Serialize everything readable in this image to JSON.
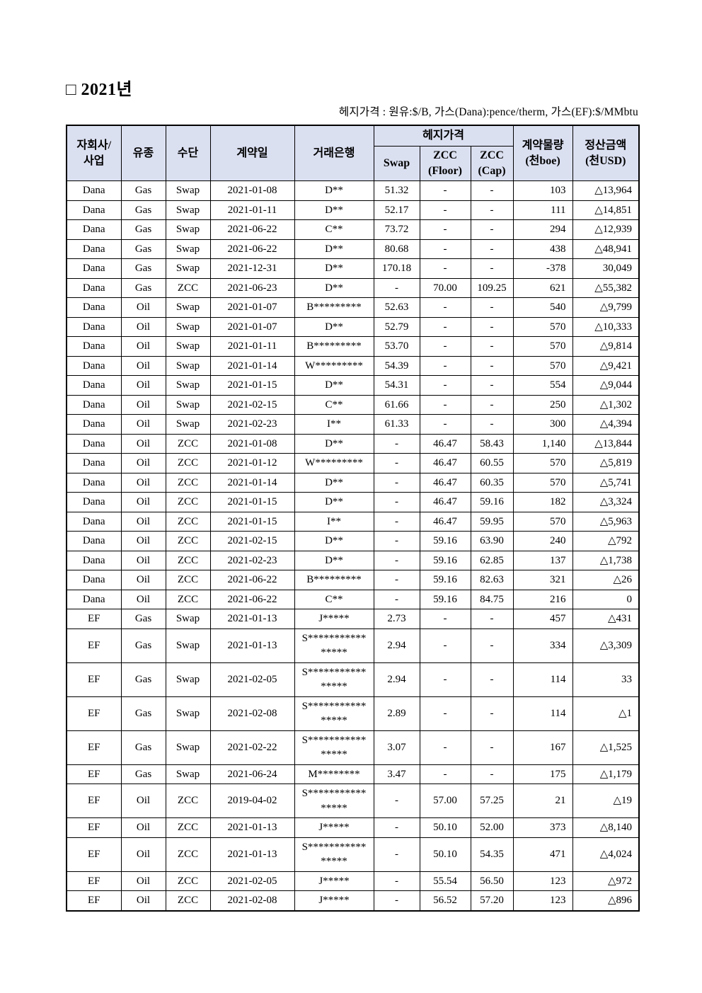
{
  "page": {
    "title": "□ 2021년",
    "subtitle": "헤지가격 : 원유:$/B, 가스(Dana):pence/therm, 가스(EF):$/MMbtu"
  },
  "colors": {
    "header_bg": "#dbe0f1",
    "border": "#000000"
  },
  "table": {
    "headers": {
      "company": "자회사/\n사업",
      "fuel": "유종",
      "method": "수단",
      "date": "계약일",
      "bank": "거래은행",
      "hedge_group": "헤지가격",
      "swap": "Swap",
      "zcc_floor": "ZCC\n(Floor)",
      "zcc_cap": "ZCC\n(Cap)",
      "volume": "계약물량\n(천boe)",
      "settlement": "정산금액\n(천USD)"
    },
    "rows": [
      [
        "Dana",
        "Gas",
        "Swap",
        "2021-01-08",
        "D**",
        "51.32",
        "-",
        "-",
        "103",
        "△13,964"
      ],
      [
        "Dana",
        "Gas",
        "Swap",
        "2021-01-11",
        "D**",
        "52.17",
        "-",
        "-",
        "111",
        "△14,851"
      ],
      [
        "Dana",
        "Gas",
        "Swap",
        "2021-06-22",
        "C**",
        "73.72",
        "-",
        "-",
        "294",
        "△12,939"
      ],
      [
        "Dana",
        "Gas",
        "Swap",
        "2021-06-22",
        "D**",
        "80.68",
        "-",
        "-",
        "438",
        "△48,941"
      ],
      [
        "Dana",
        "Gas",
        "Swap",
        "2021-12-31",
        "D**",
        "170.18",
        "-",
        "-",
        "-378",
        "30,049"
      ],
      [
        "Dana",
        "Gas",
        "ZCC",
        "2021-06-23",
        "D**",
        "-",
        "70.00",
        "109.25",
        "621",
        "△55,382"
      ],
      [
        "Dana",
        "Oil",
        "Swap",
        "2021-01-07",
        "B*********",
        "52.63",
        "-",
        "-",
        "540",
        "△9,799"
      ],
      [
        "Dana",
        "Oil",
        "Swap",
        "2021-01-07",
        "D**",
        "52.79",
        "-",
        "-",
        "570",
        "△10,333"
      ],
      [
        "Dana",
        "Oil",
        "Swap",
        "2021-01-11",
        "B*********",
        "53.70",
        "-",
        "-",
        "570",
        "△9,814"
      ],
      [
        "Dana",
        "Oil",
        "Swap",
        "2021-01-14",
        "W*********",
        "54.39",
        "-",
        "-",
        "570",
        "△9,421"
      ],
      [
        "Dana",
        "Oil",
        "Swap",
        "2021-01-15",
        "D**",
        "54.31",
        "-",
        "-",
        "554",
        "△9,044"
      ],
      [
        "Dana",
        "Oil",
        "Swap",
        "2021-02-15",
        "C**",
        "61.66",
        "-",
        "-",
        "250",
        "△1,302"
      ],
      [
        "Dana",
        "Oil",
        "Swap",
        "2021-02-23",
        "I**",
        "61.33",
        "-",
        "-",
        "300",
        "△4,394"
      ],
      [
        "Dana",
        "Oil",
        "ZCC",
        "2021-01-08",
        "D**",
        "-",
        "46.47",
        "58.43",
        "1,140",
        "△13,844"
      ],
      [
        "Dana",
        "Oil",
        "ZCC",
        "2021-01-12",
        "W*********",
        "-",
        "46.47",
        "60.55",
        "570",
        "△5,819"
      ],
      [
        "Dana",
        "Oil",
        "ZCC",
        "2021-01-14",
        "D**",
        "-",
        "46.47",
        "60.35",
        "570",
        "△5,741"
      ],
      [
        "Dana",
        "Oil",
        "ZCC",
        "2021-01-15",
        "D**",
        "-",
        "46.47",
        "59.16",
        "182",
        "△3,324"
      ],
      [
        "Dana",
        "Oil",
        "ZCC",
        "2021-01-15",
        "I**",
        "-",
        "46.47",
        "59.95",
        "570",
        "△5,963"
      ],
      [
        "Dana",
        "Oil",
        "ZCC",
        "2021-02-15",
        "D**",
        "-",
        "59.16",
        "63.90",
        "240",
        "△792"
      ],
      [
        "Dana",
        "Oil",
        "ZCC",
        "2021-02-23",
        "D**",
        "-",
        "59.16",
        "62.85",
        "137",
        "△1,738"
      ],
      [
        "Dana",
        "Oil",
        "ZCC",
        "2021-06-22",
        "B*********",
        "-",
        "59.16",
        "82.63",
        "321",
        "△26"
      ],
      [
        "Dana",
        "Oil",
        "ZCC",
        "2021-06-22",
        "C**",
        "-",
        "59.16",
        "84.75",
        "216",
        "0"
      ],
      [
        "EF",
        "Gas",
        "Swap",
        "2021-01-13",
        "J*****",
        "2.73",
        "-",
        "-",
        "457",
        "△431"
      ],
      [
        "EF",
        "Gas",
        "Swap",
        "2021-01-13",
        "S***********\n*****",
        "2.94",
        "-",
        "-",
        "334",
        "△3,309"
      ],
      [
        "EF",
        "Gas",
        "Swap",
        "2021-02-05",
        "S***********\n*****",
        "2.94",
        "-",
        "-",
        "114",
        "33"
      ],
      [
        "EF",
        "Gas",
        "Swap",
        "2021-02-08",
        "S***********\n*****",
        "2.89",
        "-",
        "-",
        "114",
        "△1"
      ],
      [
        "EF",
        "Gas",
        "Swap",
        "2021-02-22",
        "S***********\n*****",
        "3.07",
        "-",
        "-",
        "167",
        "△1,525"
      ],
      [
        "EF",
        "Gas",
        "Swap",
        "2021-06-24",
        "M********",
        "3.47",
        "-",
        "-",
        "175",
        "△1,179"
      ],
      [
        "EF",
        "Oil",
        "ZCC",
        "2019-04-02",
        "S***********\n*****",
        "-",
        "57.00",
        "57.25",
        "21",
        "△19"
      ],
      [
        "EF",
        "Oil",
        "ZCC",
        "2021-01-13",
        "J*****",
        "-",
        "50.10",
        "52.00",
        "373",
        "△8,140"
      ],
      [
        "EF",
        "Oil",
        "ZCC",
        "2021-01-13",
        "S***********\n*****",
        "-",
        "50.10",
        "54.35",
        "471",
        "△4,024"
      ],
      [
        "EF",
        "Oil",
        "ZCC",
        "2021-02-05",
        "J*****",
        "-",
        "55.54",
        "56.50",
        "123",
        "△972"
      ],
      [
        "EF",
        "Oil",
        "ZCC",
        "2021-02-08",
        "J*****",
        "-",
        "56.52",
        "57.20",
        "123",
        "△896"
      ]
    ]
  }
}
